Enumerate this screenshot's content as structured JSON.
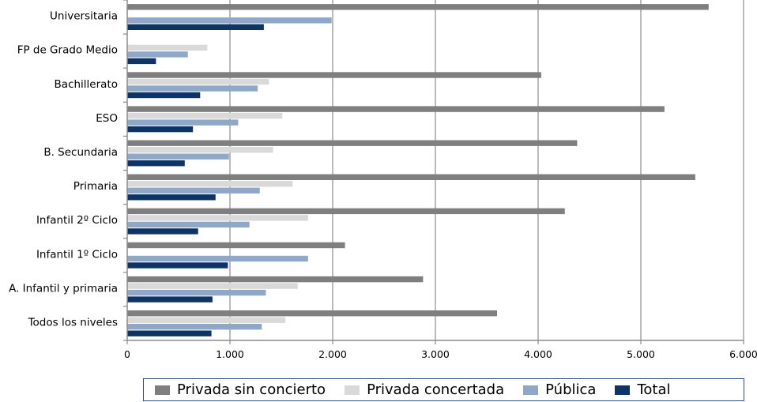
{
  "chart_data": {
    "type": "bar",
    "orientation": "horizontal",
    "title": "",
    "xlabel": "",
    "ylabel": "",
    "xlim": [
      0,
      6000
    ],
    "x_ticks": [
      0,
      1000,
      2000,
      3000,
      4000,
      5000,
      6000
    ],
    "x_tick_labels": [
      "0",
      "1.000",
      "2.000",
      "3.000",
      "4.000",
      "5.000",
      "6.000"
    ],
    "grid": "vertical",
    "legend_position": "bottom",
    "categories": [
      "Universitaria",
      "FP de Grado Medio",
      "Bachillerato",
      "ESO",
      "B. Secundaria",
      "Primaria",
      "Infantil 2º Ciclo",
      "Infantil 1º Ciclo",
      "A. Infantil y primaria",
      "Todos los niveles"
    ],
    "series": [
      {
        "name": "Privada sin concierto",
        "color": "#7f7f7f",
        "values": [
          5660,
          null,
          4030,
          5230,
          4380,
          5530,
          4260,
          2120,
          2880,
          3600
        ]
      },
      {
        "name": "Privada concertada",
        "color": "#d9d9d9",
        "values": [
          null,
          780,
          1380,
          1510,
          1420,
          1610,
          1760,
          null,
          1660,
          1540
        ]
      },
      {
        "name": "Pública",
        "color": "#8fa8c8",
        "values": [
          1990,
          590,
          1270,
          1080,
          990,
          1290,
          1190,
          1760,
          1350,
          1310
        ]
      },
      {
        "name": "Total",
        "color": "#0e3465",
        "values": [
          1330,
          280,
          710,
          640,
          560,
          860,
          690,
          980,
          830,
          820
        ]
      }
    ]
  }
}
